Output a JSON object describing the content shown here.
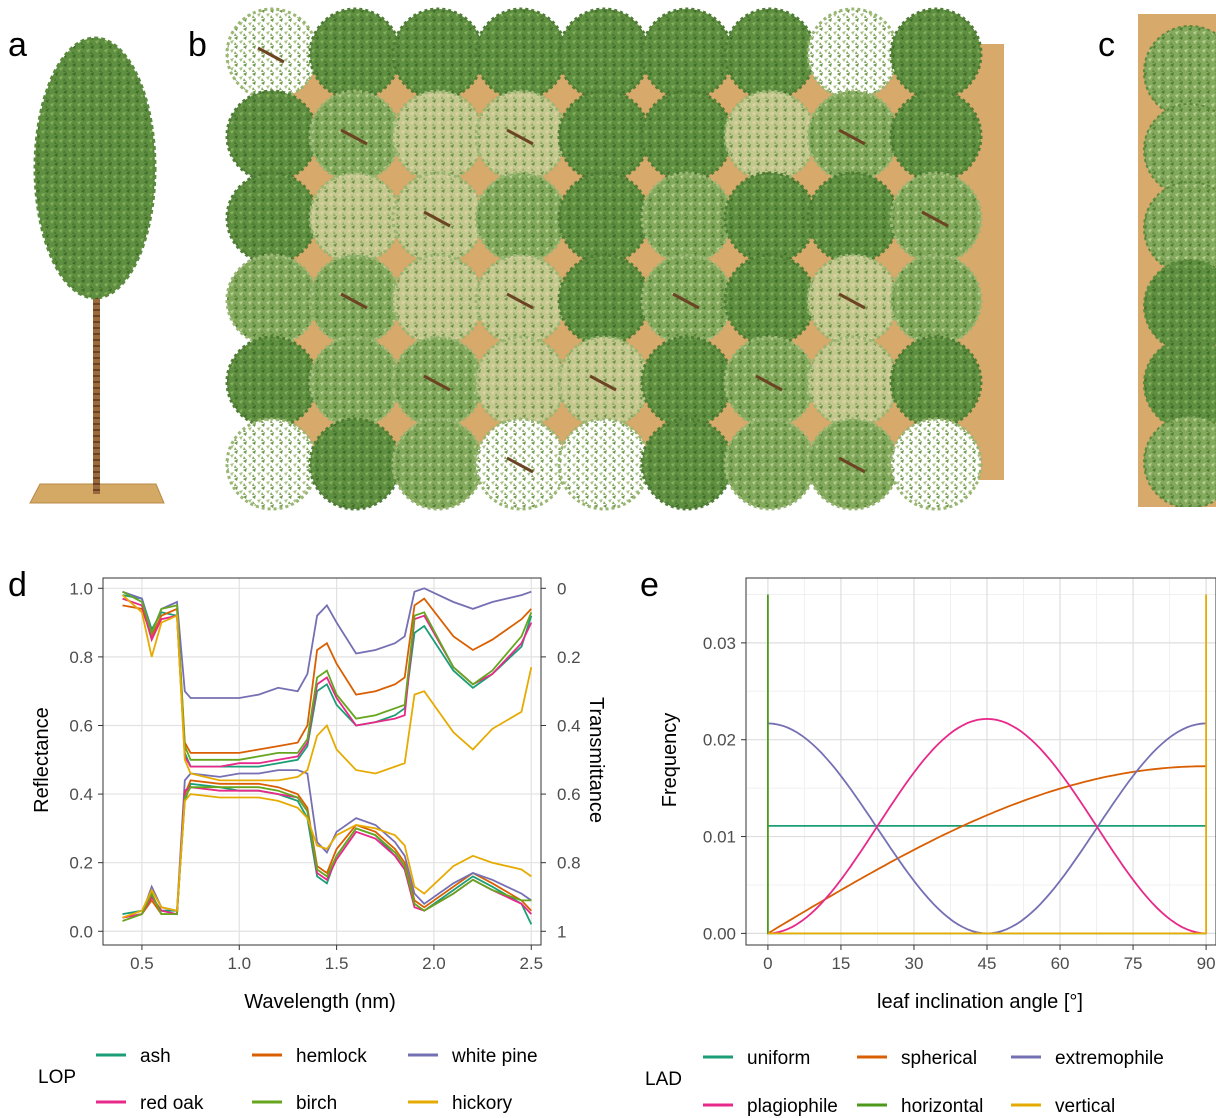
{
  "panel_labels": {
    "a": "a",
    "b": "b",
    "c": "c",
    "d": "d",
    "e": "e"
  },
  "colors": {
    "ground": "#d7a96a",
    "canopy_dark": "#5c8a3e",
    "canopy_light": "#8fb46a",
    "trunk": "#8b5a2b",
    "grid": "#e3e3e3"
  },
  "scene_b_crowns": [
    [
      "light",
      "dark",
      "dark",
      "dark",
      "dark",
      "dark",
      "dark",
      "light",
      "dark"
    ],
    [
      "dark",
      "mid",
      "light",
      "light",
      "dark",
      "dark",
      "light",
      "mid",
      "dark"
    ],
    [
      "dark",
      "light",
      "light",
      "mid",
      "dark",
      "mid",
      "dark",
      "dark",
      "mid"
    ],
    [
      "mid",
      "mid",
      "light",
      "light",
      "dark",
      "mid",
      "dark",
      "light",
      "mid"
    ],
    [
      "dark",
      "mid",
      "mid",
      "light",
      "light",
      "dark",
      "mid",
      "light",
      "dark"
    ],
    [
      "light",
      "dark",
      "mid",
      "light",
      "light",
      "dark",
      "mid",
      "mid",
      "light"
    ]
  ],
  "chart_data": [
    {
      "type": "line",
      "panel": "d",
      "xlabel": "Wavelength (nm)",
      "ylabel": "Reflectance",
      "y2label": "Transmittance",
      "xlim": [
        0.3,
        2.55
      ],
      "ylim": [
        -0.04,
        1.03
      ],
      "y2lim": [
        1.04,
        -0.03
      ],
      "x_ticks": [
        "0.5",
        "1.0",
        "1.5",
        "2.0",
        "2.5"
      ],
      "y_ticks": [
        "0.0",
        "0.2",
        "0.4",
        "0.6",
        "0.8",
        "1.0"
      ],
      "y2_ticks": [
        "0",
        "0.2",
        "0.4",
        "0.6",
        "0.8",
        "1"
      ],
      "grid": true,
      "legend": {
        "title": "LOP",
        "position": "bottom"
      },
      "x": [
        0.4,
        0.5,
        0.55,
        0.6,
        0.68,
        0.72,
        0.75,
        0.9,
        1.0,
        1.1,
        1.2,
        1.3,
        1.35,
        1.4,
        1.45,
        1.5,
        1.6,
        1.7,
        1.8,
        1.85,
        1.9,
        1.95,
        2.1,
        2.2,
        2.3,
        2.45,
        2.5
      ],
      "series": [
        {
          "name": "ash",
          "color": "#1b9e77",
          "reflectance": [
            0.05,
            0.06,
            0.1,
            0.06,
            0.06,
            0.38,
            0.43,
            0.42,
            0.41,
            0.41,
            0.4,
            0.38,
            0.33,
            0.16,
            0.14,
            0.22,
            0.3,
            0.28,
            0.22,
            0.18,
            0.08,
            0.06,
            0.12,
            0.16,
            0.13,
            0.08,
            0.02
          ],
          "transmittance": [
            0.02,
            0.03,
            0.12,
            0.07,
            0.08,
            0.48,
            0.52,
            0.52,
            0.52,
            0.52,
            0.51,
            0.5,
            0.46,
            0.3,
            0.28,
            0.34,
            0.4,
            0.39,
            0.37,
            0.35,
            0.13,
            0.11,
            0.24,
            0.29,
            0.25,
            0.17,
            0.08
          ]
        },
        {
          "name": "hemlock",
          "color": "#d95f02",
          "reflectance": [
            0.04,
            0.05,
            0.09,
            0.05,
            0.05,
            0.4,
            0.44,
            0.43,
            0.43,
            0.43,
            0.42,
            0.4,
            0.36,
            0.19,
            0.17,
            0.24,
            0.31,
            0.29,
            0.24,
            0.2,
            0.09,
            0.07,
            0.13,
            0.17,
            0.14,
            0.09,
            0.06
          ],
          "transmittance": [
            0.05,
            0.06,
            0.14,
            0.08,
            0.06,
            0.45,
            0.48,
            0.48,
            0.48,
            0.47,
            0.46,
            0.45,
            0.4,
            0.18,
            0.16,
            0.22,
            0.31,
            0.3,
            0.28,
            0.26,
            0.05,
            0.03,
            0.14,
            0.18,
            0.15,
            0.09,
            0.06
          ]
        },
        {
          "name": "white pine",
          "color": "#7570b3",
          "reflectance": [
            0.04,
            0.05,
            0.13,
            0.07,
            0.06,
            0.44,
            0.46,
            0.45,
            0.46,
            0.46,
            0.47,
            0.47,
            0.46,
            0.26,
            0.23,
            0.29,
            0.33,
            0.31,
            0.26,
            0.22,
            0.11,
            0.08,
            0.14,
            0.17,
            0.15,
            0.11,
            0.09
          ],
          "transmittance": [
            0.01,
            0.03,
            0.13,
            0.06,
            0.04,
            0.3,
            0.32,
            0.32,
            0.32,
            0.31,
            0.29,
            0.3,
            0.25,
            0.08,
            0.05,
            0.1,
            0.19,
            0.18,
            0.16,
            0.14,
            0.01,
            0.0,
            0.04,
            0.06,
            0.04,
            0.02,
            0.01
          ]
        },
        {
          "name": "red oak",
          "color": "#e7298a",
          "reflectance": [
            0.04,
            0.05,
            0.1,
            0.06,
            0.05,
            0.41,
            0.42,
            0.41,
            0.41,
            0.41,
            0.4,
            0.39,
            0.35,
            0.17,
            0.15,
            0.21,
            0.29,
            0.27,
            0.22,
            0.18,
            0.07,
            0.06,
            0.11,
            0.15,
            0.12,
            0.08,
            0.05
          ],
          "transmittance": [
            0.03,
            0.05,
            0.15,
            0.09,
            0.08,
            0.49,
            0.52,
            0.52,
            0.51,
            0.51,
            0.5,
            0.49,
            0.45,
            0.28,
            0.26,
            0.32,
            0.4,
            0.39,
            0.38,
            0.37,
            0.09,
            0.08,
            0.23,
            0.28,
            0.25,
            0.16,
            0.1
          ]
        },
        {
          "name": "birch",
          "color": "#66a61e",
          "reflectance": [
            0.03,
            0.05,
            0.11,
            0.05,
            0.05,
            0.39,
            0.42,
            0.42,
            0.42,
            0.42,
            0.41,
            0.39,
            0.35,
            0.18,
            0.16,
            0.22,
            0.3,
            0.28,
            0.23,
            0.19,
            0.08,
            0.06,
            0.11,
            0.15,
            0.12,
            0.09,
            0.09
          ],
          "transmittance": [
            0.01,
            0.04,
            0.13,
            0.06,
            0.05,
            0.46,
            0.5,
            0.5,
            0.5,
            0.49,
            0.48,
            0.48,
            0.44,
            0.26,
            0.24,
            0.31,
            0.38,
            0.37,
            0.35,
            0.34,
            0.08,
            0.07,
            0.23,
            0.28,
            0.24,
            0.14,
            0.07
          ]
        },
        {
          "name": "hickory",
          "color": "#e6ab02",
          "reflectance": [
            0.04,
            0.06,
            0.12,
            0.07,
            0.06,
            0.38,
            0.4,
            0.39,
            0.39,
            0.39,
            0.38,
            0.36,
            0.33,
            0.25,
            0.24,
            0.28,
            0.31,
            0.3,
            0.28,
            0.25,
            0.13,
            0.11,
            0.19,
            0.22,
            0.2,
            0.18,
            0.16
          ],
          "transmittance": [
            0.02,
            0.07,
            0.2,
            0.1,
            0.08,
            0.5,
            0.54,
            0.56,
            0.56,
            0.56,
            0.56,
            0.55,
            0.53,
            0.43,
            0.4,
            0.47,
            0.53,
            0.54,
            0.52,
            0.51,
            0.31,
            0.3,
            0.42,
            0.47,
            0.41,
            0.36,
            0.23
          ]
        }
      ]
    },
    {
      "type": "line",
      "panel": "e",
      "xlabel": "leaf inclination angle [°]",
      "ylabel": "Frequency",
      "xlim": [
        -4.5,
        94.5
      ],
      "ylim": [
        -0.0012,
        0.0367
      ],
      "x_ticks": [
        "0",
        "15",
        "30",
        "45",
        "60",
        "75",
        "90"
      ],
      "y_ticks": [
        "0.00",
        "0.01",
        "0.02",
        "0.03"
      ],
      "grid": true,
      "legend": {
        "title": "LAD",
        "position": "bottom"
      },
      "series": [
        {
          "name": "uniform",
          "color": "#1b9e77",
          "kind": "uniform",
          "value": 0.0111
        },
        {
          "name": "spherical",
          "color": "#d95f02",
          "kind": "spherical",
          "amplitude": 0.01726
        },
        {
          "name": "extremophile",
          "color": "#7570b3",
          "kind": "extremophile",
          "amplitude": 0.02168
        },
        {
          "name": "plagiophile",
          "color": "#e7298a",
          "kind": "plagiophile",
          "amplitude": 0.02215
        },
        {
          "name": "horizontal",
          "color": "#4d9a1b",
          "kind": "horizontal",
          "peak": 0.035,
          "peak_angle": 0
        },
        {
          "name": "vertical",
          "color": "#e6ab02",
          "kind": "vertical",
          "peak": 0.035,
          "peak_angle": 90
        }
      ]
    }
  ]
}
